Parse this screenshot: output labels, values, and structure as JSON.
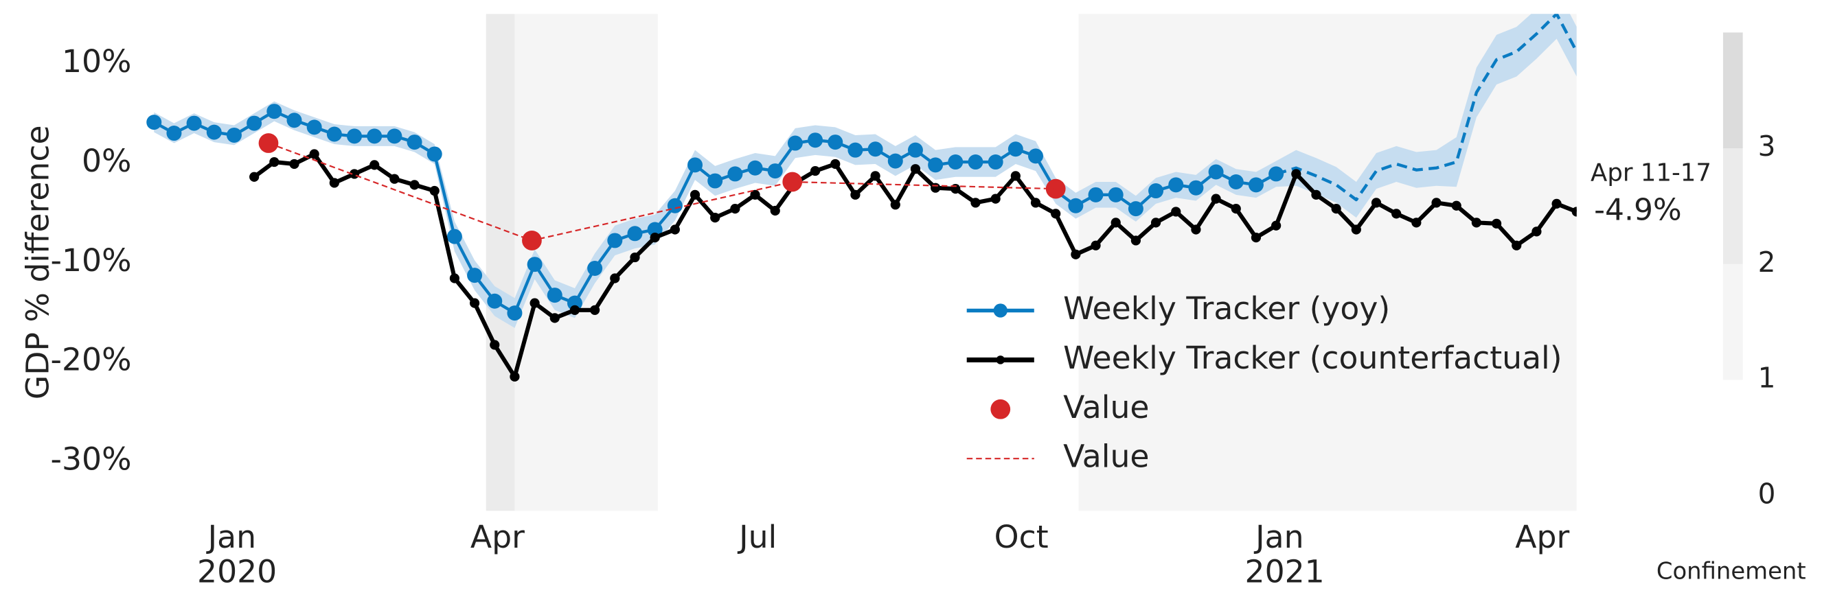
{
  "chart_data": {
    "type": "line",
    "ylabel": "GDP % difference",
    "xlim": [
      "2019-11-30",
      "2021-04-13"
    ],
    "ylim": [
      -35,
      15
    ],
    "xticks": [
      {
        "value": "2020-01-01",
        "label": "Jan\n2020"
      },
      {
        "value": "2020-04-01",
        "label": "Apr"
      },
      {
        "value": "2020-07-01",
        "label": "Jul"
      },
      {
        "value": "2020-10-01",
        "label": "Oct"
      },
      {
        "value": "2021-01-01",
        "label": "Jan\n2021"
      },
      {
        "value": "2021-04-01",
        "label": "Apr"
      }
    ],
    "yticks": [
      {
        "value": 10,
        "label": "10%"
      },
      {
        "value": 0,
        "label": "0%"
      },
      {
        "value": -10,
        "label": "-10%"
      },
      {
        "value": -20,
        "label": "-20%"
      },
      {
        "value": -30,
        "label": "-30%"
      }
    ],
    "grid": false,
    "legend": "lower right",
    "x": [
      "2019-12-03",
      "2019-12-10",
      "2019-12-17",
      "2019-12-24",
      "2019-12-31",
      "2020-01-07",
      "2020-01-14",
      "2020-01-21",
      "2020-01-28",
      "2020-02-04",
      "2020-02-11",
      "2020-02-18",
      "2020-02-25",
      "2020-03-03",
      "2020-03-10",
      "2020-03-17",
      "2020-03-24",
      "2020-03-31",
      "2020-04-07",
      "2020-04-14",
      "2020-04-21",
      "2020-04-28",
      "2020-05-05",
      "2020-05-12",
      "2020-05-19",
      "2020-05-26",
      "2020-06-02",
      "2020-06-09",
      "2020-06-16",
      "2020-06-23",
      "2020-06-30",
      "2020-07-07",
      "2020-07-14",
      "2020-07-21",
      "2020-07-28",
      "2020-08-04",
      "2020-08-11",
      "2020-08-18",
      "2020-08-25",
      "2020-09-01",
      "2020-09-08",
      "2020-09-15",
      "2020-09-22",
      "2020-09-29",
      "2020-10-06",
      "2020-10-13",
      "2020-10-20",
      "2020-10-27",
      "2020-11-03",
      "2020-11-10",
      "2020-11-17",
      "2020-11-24",
      "2020-12-01",
      "2020-12-08",
      "2020-12-15",
      "2020-12-22",
      "2020-12-29",
      "2021-01-05",
      "2021-01-12",
      "2021-01-19",
      "2021-01-26",
      "2021-02-02",
      "2021-02-09",
      "2021-02-16",
      "2021-02-23",
      "2021-03-02",
      "2021-03-09",
      "2021-03-16",
      "2021-03-23",
      "2021-03-30",
      "2021-04-06",
      "2021-04-13"
    ],
    "band": {
      "color": "#c6ddf0",
      "lower": [
        3.1,
        2.0,
        3.0,
        2.1,
        1.8,
        3.0,
        4.2,
        3.3,
        2.6,
        1.9,
        1.7,
        1.7,
        1.7,
        1.1,
        -0.1,
        -8.9,
        -12.8,
        -15.4,
        -16.6,
        -11.7,
        -14.8,
        -15.6,
        -12.1,
        -9.3,
        -8.6,
        -8.2,
        -5.8,
        -1.7,
        -3.3,
        -2.6,
        -2.0,
        -2.3,
        0.5,
        0.8,
        0.6,
        -0.2,
        -0.1,
        -1.3,
        -0.2,
        -1.7,
        -1.4,
        -1.4,
        -1.4,
        -0.1,
        -0.8,
        -4.1,
        -5.6,
        -4.5,
        -4.5,
        -5.9,
        -4.1,
        -3.5,
        -3.8,
        -2.2,
        -3.2,
        -3.5,
        -2.4,
        -2.3,
        -3.1,
        -4.0,
        -5.5,
        -2.6,
        -1.9,
        -2.5,
        -2.3,
        -2.4,
        4.6,
        7.9,
        8.7,
        10.5,
        12.5,
        8.7
      ],
      "upper": [
        5.1,
        4.0,
        5.0,
        4.1,
        3.8,
        5.0,
        6.2,
        5.3,
        4.6,
        3.9,
        3.7,
        3.7,
        3.7,
        3.1,
        1.9,
        -5.9,
        -9.8,
        -12.4,
        -13.6,
        -8.7,
        -11.8,
        -12.6,
        -9.1,
        -6.3,
        -5.6,
        -5.2,
        -2.8,
        1.3,
        -0.3,
        0.4,
        1.0,
        0.7,
        3.5,
        3.8,
        3.6,
        2.8,
        2.9,
        1.7,
        2.8,
        1.3,
        1.6,
        1.6,
        1.6,
        2.9,
        2.2,
        -1.5,
        -3.0,
        -1.9,
        -1.9,
        -3.3,
        -1.5,
        -0.9,
        -1.2,
        0.4,
        -0.6,
        -0.9,
        0.2,
        1.3,
        0.5,
        -0.4,
        -1.9,
        1.0,
        1.7,
        1.1,
        1.3,
        2.6,
        9.6,
        12.9,
        13.7,
        15.5,
        17.6,
        13.7
      ]
    },
    "series": [
      {
        "name": "Weekly Tracker (yoy)",
        "color": "#0a7bc2",
        "marker": true,
        "linestyle": "solid",
        "values": [
          4.1,
          3.0,
          4.0,
          3.1,
          2.8,
          4.0,
          5.2,
          4.3,
          3.6,
          2.9,
          2.7,
          2.7,
          2.7,
          2.1,
          0.9,
          -7.4,
          -11.3,
          -13.9,
          -15.1,
          -10.2,
          -13.3,
          -14.1,
          -10.6,
          -7.8,
          -7.1,
          -6.7,
          -4.3,
          -0.2,
          -1.8,
          -1.1,
          -0.5,
          -0.8,
          2.0,
          2.3,
          2.1,
          1.3,
          1.4,
          0.2,
          1.3,
          -0.2,
          0.1,
          0.1,
          0.1,
          1.4,
          0.7,
          -2.8,
          -4.3,
          -3.2,
          -3.2,
          -4.6,
          -2.8,
          -2.2,
          -2.5,
          -0.9,
          -1.9,
          -2.2,
          -1.1,
          null,
          null,
          null,
          null,
          null,
          null,
          null,
          null,
          null,
          null,
          null,
          null,
          null,
          null,
          null
        ]
      },
      {
        "color": "#0a7bc2",
        "marker": false,
        "linestyle": "dashed",
        "values": [
          null,
          null,
          null,
          null,
          null,
          null,
          null,
          null,
          null,
          null,
          null,
          null,
          null,
          null,
          null,
          null,
          null,
          null,
          null,
          null,
          null,
          null,
          null,
          null,
          null,
          null,
          null,
          null,
          null,
          null,
          null,
          null,
          null,
          null,
          null,
          null,
          null,
          null,
          null,
          null,
          null,
          null,
          null,
          null,
          null,
          null,
          null,
          null,
          null,
          null,
          null,
          null,
          null,
          null,
          null,
          null,
          -1.1,
          -0.5,
          -1.3,
          -2.2,
          -3.7,
          -0.8,
          -0.1,
          -0.7,
          -0.5,
          0.1,
          7.1,
          10.4,
          11.2,
          13.0,
          15.0,
          11.2
        ]
      },
      {
        "name": "Weekly Tracker (counterfactual)",
        "color": "#000000",
        "marker": true,
        "linestyle": "solid",
        "values": [
          null,
          null,
          null,
          null,
          null,
          -1.4,
          0.1,
          -0.1,
          0.9,
          -2.0,
          -1.1,
          -0.2,
          -1.6,
          -2.2,
          -2.8,
          -11.6,
          -14.1,
          -18.3,
          -21.5,
          -14.1,
          -15.6,
          -14.8,
          -14.8,
          -11.6,
          -9.5,
          -7.5,
          -6.7,
          -3.2,
          -5.5,
          -4.6,
          -3.2,
          -4.8,
          -2.0,
          -0.8,
          -0.1,
          -3.2,
          -1.3,
          -4.2,
          -0.6,
          -2.5,
          -2.6,
          -4.0,
          -3.6,
          -1.3,
          -4.0,
          -5.1,
          -9.2,
          -8.3,
          -6.0,
          -7.8,
          -6.0,
          -4.9,
          -6.7,
          -3.6,
          -4.6,
          -7.5,
          -6.3,
          -1.1,
          -3.2,
          -4.6,
          -6.7,
          -4.0,
          -5.1,
          -6.0,
          -4.0,
          -4.3,
          -6.0,
          -6.1,
          -8.3,
          -6.9,
          -4.1,
          -4.9
        ]
      },
      {
        "name": "Value",
        "color": "#d62728",
        "marker": true,
        "linestyle": "none",
        "x": [
          "2020-01-12",
          "2020-04-13",
          "2020-07-13",
          "2020-10-13"
        ],
        "values": [
          2.0,
          -7.8,
          -1.9,
          -2.6
        ]
      },
      {
        "name": "Value",
        "color": "#d62728",
        "marker": false,
        "linestyle": "dashed",
        "x": [
          "2020-01-12",
          "2020-04-13",
          "2020-07-13",
          "2020-10-13"
        ],
        "values": [
          2.0,
          -7.8,
          -1.9,
          -2.6
        ]
      }
    ],
    "annotation": {
      "label": "Apr 11-17",
      "value": -4.9,
      "value_label": "-4.9%"
    },
    "confinement": {
      "label": "Confinement",
      "lim": [
        0,
        4
      ],
      "ticks": [
        0,
        1,
        2,
        3
      ],
      "colors": [
        "#ffffff",
        "#f5f5f5",
        "#ebebeb",
        "#dcdcdc"
      ],
      "periods": [
        {
          "start": "2020-03-28",
          "end": "2020-04-07",
          "level": 2
        },
        {
          "start": "2020-04-07",
          "end": "2020-05-27",
          "level": 1
        },
        {
          "start": "2020-10-21",
          "end": "2021-04-13",
          "level": 1
        }
      ]
    }
  }
}
